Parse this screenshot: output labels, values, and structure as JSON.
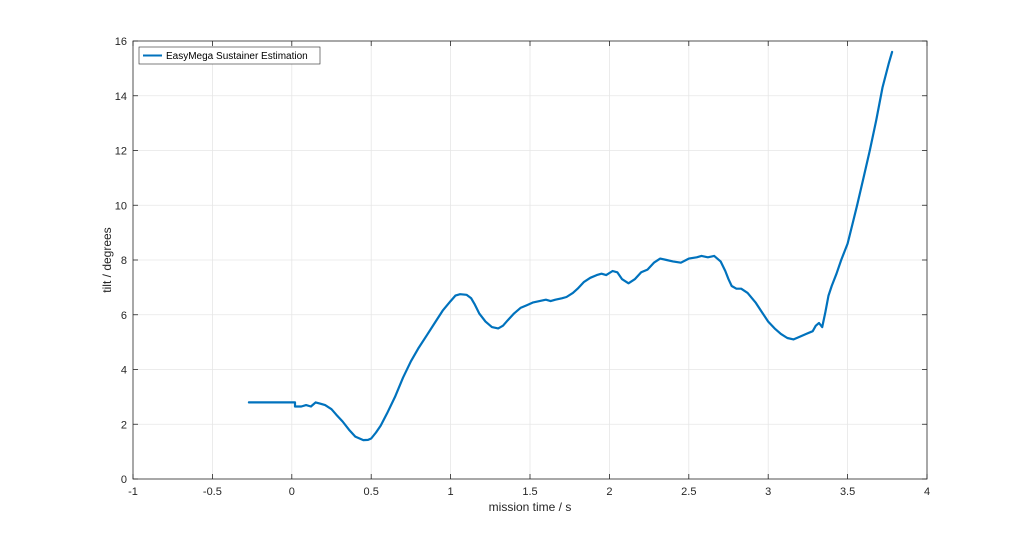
{
  "chart_data": {
    "type": "line",
    "title": "",
    "xlabel": "mission time / s",
    "ylabel": "tilt / degrees",
    "xlim": [
      -1,
      4
    ],
    "ylim": [
      0,
      16
    ],
    "xticks": [
      -1,
      -0.5,
      0,
      0.5,
      1,
      1.5,
      2,
      2.5,
      3,
      3.5,
      4
    ],
    "xtick_labels": [
      "-1",
      "-0.5",
      "0",
      "0.5",
      "1",
      "1.5",
      "2",
      "2.5",
      "3",
      "3.5",
      "4"
    ],
    "yticks": [
      0,
      2,
      4,
      6,
      8,
      10,
      12,
      14,
      16
    ],
    "ytick_labels": [
      "0",
      "2",
      "4",
      "6",
      "8",
      "10",
      "12",
      "14",
      "16"
    ],
    "grid": true,
    "legend_position": "top-left",
    "colors": {
      "series": "#0072BD",
      "grid": "#e6e6e6",
      "axis": "#262626"
    },
    "series": [
      {
        "name": "EasyMega Sustainer Estimation",
        "x": [
          -0.27,
          0.02,
          0.02,
          0.06,
          0.09,
          0.12,
          0.15,
          0.18,
          0.21,
          0.25,
          0.28,
          0.32,
          0.36,
          0.4,
          0.45,
          0.48,
          0.5,
          0.53,
          0.56,
          0.6,
          0.65,
          0.7,
          0.75,
          0.8,
          0.85,
          0.9,
          0.95,
          1.0,
          1.03,
          1.06,
          1.1,
          1.13,
          1.15,
          1.18,
          1.22,
          1.26,
          1.3,
          1.33,
          1.36,
          1.4,
          1.44,
          1.48,
          1.52,
          1.56,
          1.6,
          1.63,
          1.66,
          1.7,
          1.73,
          1.77,
          1.8,
          1.84,
          1.88,
          1.92,
          1.95,
          1.98,
          2.02,
          2.05,
          2.08,
          2.12,
          2.16,
          2.2,
          2.24,
          2.28,
          2.32,
          2.36,
          2.4,
          2.45,
          2.5,
          2.55,
          2.58,
          2.62,
          2.66,
          2.7,
          2.73,
          2.75,
          2.77,
          2.8,
          2.83,
          2.87,
          2.92,
          2.96,
          3.0,
          3.04,
          3.08,
          3.12,
          3.16,
          3.2,
          3.24,
          3.28,
          3.3,
          3.32,
          3.34,
          3.36,
          3.38,
          3.4,
          3.43,
          3.46,
          3.5,
          3.53,
          3.56,
          3.6,
          3.64,
          3.68,
          3.72,
          3.76,
          3.78
        ],
        "values": [
          2.8,
          2.8,
          2.65,
          2.65,
          2.7,
          2.65,
          2.8,
          2.75,
          2.7,
          2.55,
          2.35,
          2.1,
          1.8,
          1.55,
          1.42,
          1.43,
          1.48,
          1.7,
          1.95,
          2.4,
          3.0,
          3.7,
          4.3,
          4.8,
          5.25,
          5.7,
          6.15,
          6.5,
          6.7,
          6.75,
          6.73,
          6.6,
          6.4,
          6.05,
          5.75,
          5.55,
          5.5,
          5.6,
          5.8,
          6.05,
          6.25,
          6.35,
          6.45,
          6.5,
          6.55,
          6.5,
          6.55,
          6.6,
          6.65,
          6.8,
          6.95,
          7.2,
          7.35,
          7.45,
          7.5,
          7.45,
          7.6,
          7.55,
          7.3,
          7.15,
          7.3,
          7.55,
          7.65,
          7.9,
          8.05,
          8.0,
          7.95,
          7.9,
          8.05,
          8.1,
          8.15,
          8.1,
          8.15,
          7.95,
          7.6,
          7.3,
          7.05,
          6.95,
          6.95,
          6.8,
          6.45,
          6.1,
          5.75,
          5.5,
          5.3,
          5.15,
          5.1,
          5.2,
          5.3,
          5.4,
          5.6,
          5.7,
          5.55,
          6.1,
          6.7,
          7.05,
          7.5,
          8.0,
          8.6,
          9.3,
          10.0,
          11.0,
          12.0,
          13.1,
          14.3,
          15.2,
          15.6
        ]
      }
    ]
  }
}
